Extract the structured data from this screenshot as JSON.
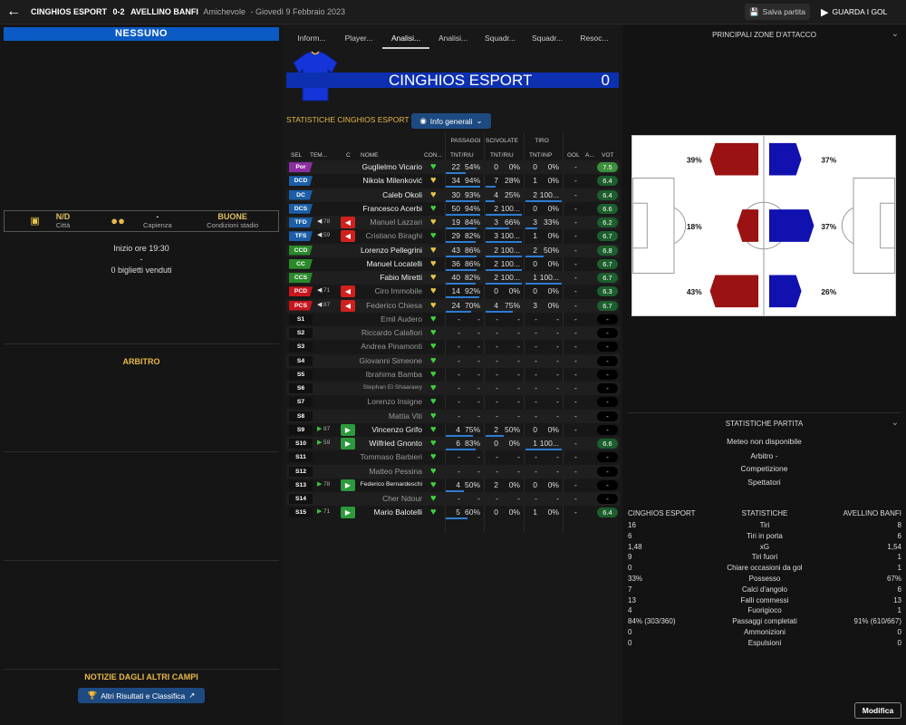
{
  "topbar": {
    "home": "CINGHIOS ESPORT",
    "score": "0-2",
    "away": "AVELLINO BANFI",
    "competition": "Amichevole",
    "date": "- Giovedì 9 Febbraio 2023",
    "save": "Salva partita",
    "watch": "GUARDA I GOL"
  },
  "left": {
    "banner": "NESSUNO",
    "city_val": "N/D",
    "city_lbl": "Città",
    "cap_val": "-",
    "cap_lbl": "Capienza",
    "cond_val": "BUONE",
    "cond_lbl": "Condizioni stadio",
    "start": "Inizio ore 19:30",
    "dash": "-",
    "tickets": "0 biglietti venduti",
    "referee": "ARBITRO",
    "news": "NOTIZIE DAGLI ALTRI CAMPI",
    "results_btn": "Altri Risultati e Classifica"
  },
  "tabs": [
    "Inform...",
    "Player...",
    "Analisi...",
    "Analisi...",
    "Squadr...",
    "Squadr...",
    "Resoc..."
  ],
  "team": {
    "name": "CINGHIOS ESPORT",
    "score": "0",
    "stats_title": "STATISTICHE CINGHIOS ESPORT",
    "info_btn": "Info generali"
  },
  "headers": {
    "passaggi": "PASSAGGI",
    "scivolate": "SCIVOLATE",
    "tiro": "TIRO",
    "sel": "SEL",
    "tem": "TEM...",
    "c": "C",
    "nome": "NOME",
    "con": "CON...",
    "tnt_riu": "TNT/RIU",
    "tnt_riu2": "TNT/RIU",
    "tnt_inp": "TNT/INP",
    "gol": "GOL",
    "a": "A...",
    "vot": "VOT"
  },
  "players": [
    {
      "pos": "Por",
      "cls": "gk",
      "name": "Guglielmo Vicario",
      "p": "22",
      "pp": "54%",
      "s": "0",
      "sp": "0%",
      "t": "0",
      "tp": "0%",
      "heart": "#3fd13f",
      "g": "-",
      "v": "7.5",
      "vc": "#3b8f3b",
      "pb": 0.54,
      "sbw": 0,
      "tb": 0
    },
    {
      "pos": "DCD",
      "cls": "df",
      "name": "Nikola Milenković",
      "p": "34",
      "pp": "94%",
      "s": "7",
      "sp": "28%",
      "t": "1",
      "tp": "0%",
      "heart": "#e8c44a",
      "g": "-",
      "v": "6.4",
      "vc": "#1d5e2d",
      "pb": 0.94,
      "sbw": 0.28,
      "tb": 0
    },
    {
      "pos": "DC",
      "cls": "df",
      "name": "Caleb Okoli",
      "p": "30",
      "pp": "93%",
      "s": "4",
      "sp": "25%",
      "t": "2",
      "tp": "100...",
      "heart": "#e8c44a",
      "g": "-",
      "v": "6.4",
      "vc": "#1d5e2d",
      "pb": 0.93,
      "sbw": 0.25,
      "tb": 1
    },
    {
      "pos": "DCS",
      "cls": "df",
      "name": "Francesco Acerbi",
      "p": "50",
      "pp": "94%",
      "s": "2",
      "sp": "100...",
      "t": "0",
      "tp": "0%",
      "heart": "#3fd13f",
      "g": "-",
      "v": "6.6",
      "vc": "#1d5e2d",
      "pb": 0.94,
      "sbw": 1,
      "tb": 0
    },
    {
      "pos": "TFD",
      "cls": "df",
      "tri": "◀",
      "mn": "78",
      "sb": "◀",
      "sbc": "#d0201e",
      "name": "Manuel Lazzari",
      "dim": true,
      "p": "19",
      "pp": "84%",
      "s": "3",
      "sp": "66%",
      "t": "3",
      "tp": "33%",
      "heart": "#e8c44a",
      "g": "-",
      "v": "6.2",
      "vc": "#1d5e2d",
      "pb": 0.84,
      "sbw": 0.66,
      "tb": 0.33
    },
    {
      "pos": "TFS",
      "cls": "df",
      "tri": "◀",
      "mn": "59",
      "sb": "◀",
      "sbc": "#d0201e",
      "name": "Cristiano Biraghi",
      "dim": true,
      "p": "29",
      "pp": "82%",
      "s": "3",
      "sp": "100...",
      "t": "1",
      "tp": "0%",
      "heart": "#3fd13f",
      "g": "-",
      "v": "6.7",
      "vc": "#1d5e2d",
      "pb": 0.82,
      "sbw": 1,
      "tb": 0
    },
    {
      "pos": "CCD",
      "cls": "mf",
      "name": "Lorenzo Pellegrini",
      "p": "43",
      "pp": "86%",
      "s": "2",
      "sp": "100...",
      "t": "2",
      "tp": "50%",
      "heart": "#e8c44a",
      "g": "-",
      "v": "6.8",
      "vc": "#1d5e2d",
      "pb": 0.86,
      "sbw": 1,
      "tb": 0.5
    },
    {
      "pos": "CC",
      "cls": "mf",
      "name": "Manuel Locatelli",
      "p": "36",
      "pp": "86%",
      "s": "2",
      "sp": "100...",
      "t": "0",
      "tp": "0%",
      "heart": "#e8c44a",
      "g": "-",
      "v": "6.7",
      "vc": "#1d5e2d",
      "pb": 0.86,
      "sbw": 1,
      "tb": 0
    },
    {
      "pos": "CCS",
      "cls": "mf",
      "name": "Fabio Miretti",
      "p": "40",
      "pp": "82%",
      "s": "2",
      "sp": "100...",
      "t": "1",
      "tp": "100...",
      "heart": "#e8c44a",
      "g": "-",
      "v": "6.7",
      "vc": "#1d5e2d",
      "pb": 0.82,
      "sbw": 1,
      "tb": 1
    },
    {
      "pos": "PCD",
      "cls": "fw",
      "tri": "◀",
      "mn": "71",
      "sb": "◀",
      "sbc": "#d0201e",
      "name": "Ciro Immobile",
      "dim": true,
      "p": "14",
      "pp": "92%",
      "s": "0",
      "sp": "0%",
      "t": "0",
      "tp": "0%",
      "heart": "#e8c44a",
      "g": "-",
      "v": "6.3",
      "vc": "#1d5e2d",
      "pb": 0.92,
      "sbw": 0,
      "tb": 0
    },
    {
      "pos": "PCS",
      "cls": "fw",
      "tri": "◀",
      "mn": "87",
      "sb": "◀",
      "sbc": "#d0201e",
      "name": "Federico Chiesa",
      "dim": true,
      "p": "24",
      "pp": "70%",
      "s": "4",
      "sp": "75%",
      "t": "3",
      "tp": "0%",
      "heart": "#e8c44a",
      "g": "-",
      "v": "6.7",
      "vc": "#1d5e2d",
      "pb": 0.7,
      "sbw": 0.75,
      "tb": 0
    },
    {
      "pos": "S1",
      "cls": "sub",
      "name": "Emil Audero",
      "dim": true,
      "p": "-",
      "pp": "-",
      "s": "-",
      "sp": "-",
      "t": "-",
      "tp": "-",
      "heart": "#3fd13f",
      "g": "-",
      "v": "-",
      "vc": "#000",
      "pb": 0,
      "sbw": 0,
      "tb": 0
    },
    {
      "pos": "S2",
      "cls": "sub",
      "name": "Riccardo Calafiori",
      "dim": true,
      "p": "-",
      "pp": "-",
      "s": "-",
      "sp": "-",
      "t": "-",
      "tp": "-",
      "heart": "#3fd13f",
      "g": "-",
      "v": "-",
      "vc": "#000",
      "pb": 0,
      "sbw": 0,
      "tb": 0
    },
    {
      "pos": "S3",
      "cls": "sub",
      "name": "Andrea Pinamonti",
      "dim": true,
      "p": "-",
      "pp": "-",
      "s": "-",
      "sp": "-",
      "t": "-",
      "tp": "-",
      "heart": "#3fd13f",
      "g": "-",
      "v": "-",
      "vc": "#000",
      "pb": 0,
      "sbw": 0,
      "tb": 0
    },
    {
      "pos": "S4",
      "cls": "sub",
      "name": "Giovanni Simeone",
      "dim": true,
      "p": "-",
      "pp": "-",
      "s": "-",
      "sp": "-",
      "t": "-",
      "tp": "-",
      "heart": "#3fd13f",
      "g": "-",
      "v": "-",
      "vc": "#000",
      "pb": 0,
      "sbw": 0,
      "tb": 0
    },
    {
      "pos": "S5",
      "cls": "sub",
      "name": "Ibrahima Bamba",
      "dim": true,
      "p": "-",
      "pp": "-",
      "s": "-",
      "sp": "-",
      "t": "-",
      "tp": "-",
      "heart": "#3fd13f",
      "g": "-",
      "v": "-",
      "vc": "#000",
      "pb": 0,
      "sbw": 0,
      "tb": 0
    },
    {
      "pos": "S6",
      "cls": "sub",
      "name": "Stephan El Shaarawy",
      "dim": true,
      "tiny": true,
      "p": "-",
      "pp": "-",
      "s": "-",
      "sp": "-",
      "t": "-",
      "tp": "-",
      "heart": "#3fd13f",
      "g": "-",
      "v": "-",
      "vc": "#000",
      "pb": 0,
      "sbw": 0,
      "tb": 0
    },
    {
      "pos": "S7",
      "cls": "sub",
      "name": "Lorenzo Insigne",
      "dim": true,
      "p": "-",
      "pp": "-",
      "s": "-",
      "sp": "-",
      "t": "-",
      "tp": "-",
      "heart": "#3fd13f",
      "g": "-",
      "v": "-",
      "vc": "#000",
      "pb": 0,
      "sbw": 0,
      "tb": 0
    },
    {
      "pos": "S8",
      "cls": "sub",
      "name": "Mattia Viti",
      "dim": true,
      "p": "-",
      "pp": "-",
      "s": "-",
      "sp": "-",
      "t": "-",
      "tp": "-",
      "heart": "#3fd13f",
      "g": "-",
      "v": "-",
      "vc": "#000",
      "pb": 0,
      "sbw": 0,
      "tb": 0
    },
    {
      "pos": "S9",
      "cls": "sub",
      "tri": "▶",
      "mn": "87",
      "sb": "▶",
      "sbc": "#2c9a3c",
      "name": "Vincenzo Grifo",
      "p": "4",
      "pp": "75%",
      "s": "2",
      "sp": "50%",
      "t": "0",
      "tp": "0%",
      "heart": "#3fd13f",
      "g": "-",
      "v": "-",
      "vc": "#000",
      "pb": 0.75,
      "sbw": 0.5,
      "tb": 0
    },
    {
      "pos": "S10",
      "cls": "sub",
      "tri": "▶",
      "mn": "59",
      "sb": "▶",
      "sbc": "#2c9a3c",
      "name": "Wilfried Gnonto",
      "p": "6",
      "pp": "83%",
      "s": "0",
      "sp": "0%",
      "t": "1",
      "tp": "100...",
      "heart": "#3fd13f",
      "g": "-",
      "v": "6.6",
      "vc": "#1d5e2d",
      "pb": 0.83,
      "sbw": 0,
      "tb": 1
    },
    {
      "pos": "S11",
      "cls": "sub",
      "name": "Tommaso Barbieri",
      "dim": true,
      "p": "-",
      "pp": "-",
      "s": "-",
      "sp": "-",
      "t": "-",
      "tp": "-",
      "heart": "#3fd13f",
      "g": "-",
      "v": "-",
      "vc": "#000",
      "pb": 0,
      "sbw": 0,
      "tb": 0
    },
    {
      "pos": "S12",
      "cls": "sub",
      "name": "Matteo Pessina",
      "dim": true,
      "p": "-",
      "pp": "-",
      "s": "-",
      "sp": "-",
      "t": "-",
      "tp": "-",
      "heart": "#3fd13f",
      "g": "-",
      "v": "-",
      "vc": "#000",
      "pb": 0,
      "sbw": 0,
      "tb": 0
    },
    {
      "pos": "S13",
      "cls": "sub",
      "tri": "▶",
      "mn": "78",
      "sb": "▶",
      "sbc": "#2c9a3c",
      "name": "Federico Bernardeschi",
      "tiny": true,
      "p": "4",
      "pp": "50%",
      "s": "2",
      "sp": "0%",
      "t": "0",
      "tp": "0%",
      "heart": "#3fd13f",
      "g": "-",
      "v": "-",
      "vc": "#000",
      "pb": 0.5,
      "sbw": 0,
      "tb": 0
    },
    {
      "pos": "S14",
      "cls": "sub",
      "name": "Cher Ndour",
      "dim": true,
      "p": "-",
      "pp": "-",
      "s": "-",
      "sp": "-",
      "t": "-",
      "tp": "-",
      "heart": "#3fd13f",
      "g": "-",
      "v": "-",
      "vc": "#000",
      "pb": 0,
      "sbw": 0,
      "tb": 0
    },
    {
      "pos": "S15",
      "cls": "sub",
      "tri": "▶",
      "mn": "71",
      "sb": "▶",
      "sbc": "#2c9a3c",
      "name": "Mario Balotelli",
      "p": "5",
      "pp": "60%",
      "s": "0",
      "sp": "0%",
      "t": "1",
      "tp": "0%",
      "heart": "#3fd13f",
      "g": "-",
      "v": "6.4",
      "vc": "#1d5e2d",
      "pb": 0.6,
      "sbw": 0,
      "tb": 0
    }
  ],
  "right": {
    "attack_title": "PRINCIPALI ZONE D'ATTACCO",
    "zones": {
      "home_left": "39%",
      "home_center": "18%",
      "home_right": "43%",
      "away_left": "37%",
      "away_center": "37%",
      "away_right": "26%"
    },
    "match_stats_title": "STATISTICHE PARTITA",
    "weather": "Meteo non disponibile",
    "referee": "Arbitro -",
    "competition": "Competizione",
    "spectators": "Spettatori",
    "col_home": "CINGHIOS ESPORT",
    "col_mid": "STATISTICHE",
    "col_away": "AVELLINO BANFI",
    "edit": "Modifica"
  },
  "match_stats": [
    {
      "h": "16",
      "l": "Tiri",
      "a": "8"
    },
    {
      "h": "6",
      "l": "Tiri in porta",
      "a": "6"
    },
    {
      "h": "1,48",
      "l": "xG",
      "a": "1,54"
    },
    {
      "h": "9",
      "l": "Tiri fuori",
      "a": "1"
    },
    {
      "h": "0",
      "l": "Chiare occasioni da gol",
      "a": "1"
    },
    {
      "h": "33%",
      "l": "Possesso",
      "a": "67%"
    },
    {
      "h": "7",
      "l": "Calci d'angolo",
      "a": "6"
    },
    {
      "h": "13",
      "l": "Falli commessi",
      "a": "13"
    },
    {
      "h": "4",
      "l": "Fuorigioco",
      "a": "1"
    },
    {
      "h": "84% (303/360)",
      "l": "Passaggi completati",
      "a": "91% (610/667)"
    },
    {
      "h": "0",
      "l": "Ammonizioni",
      "a": "0"
    },
    {
      "h": "0",
      "l": "Espulsioni",
      "a": "0"
    }
  ]
}
